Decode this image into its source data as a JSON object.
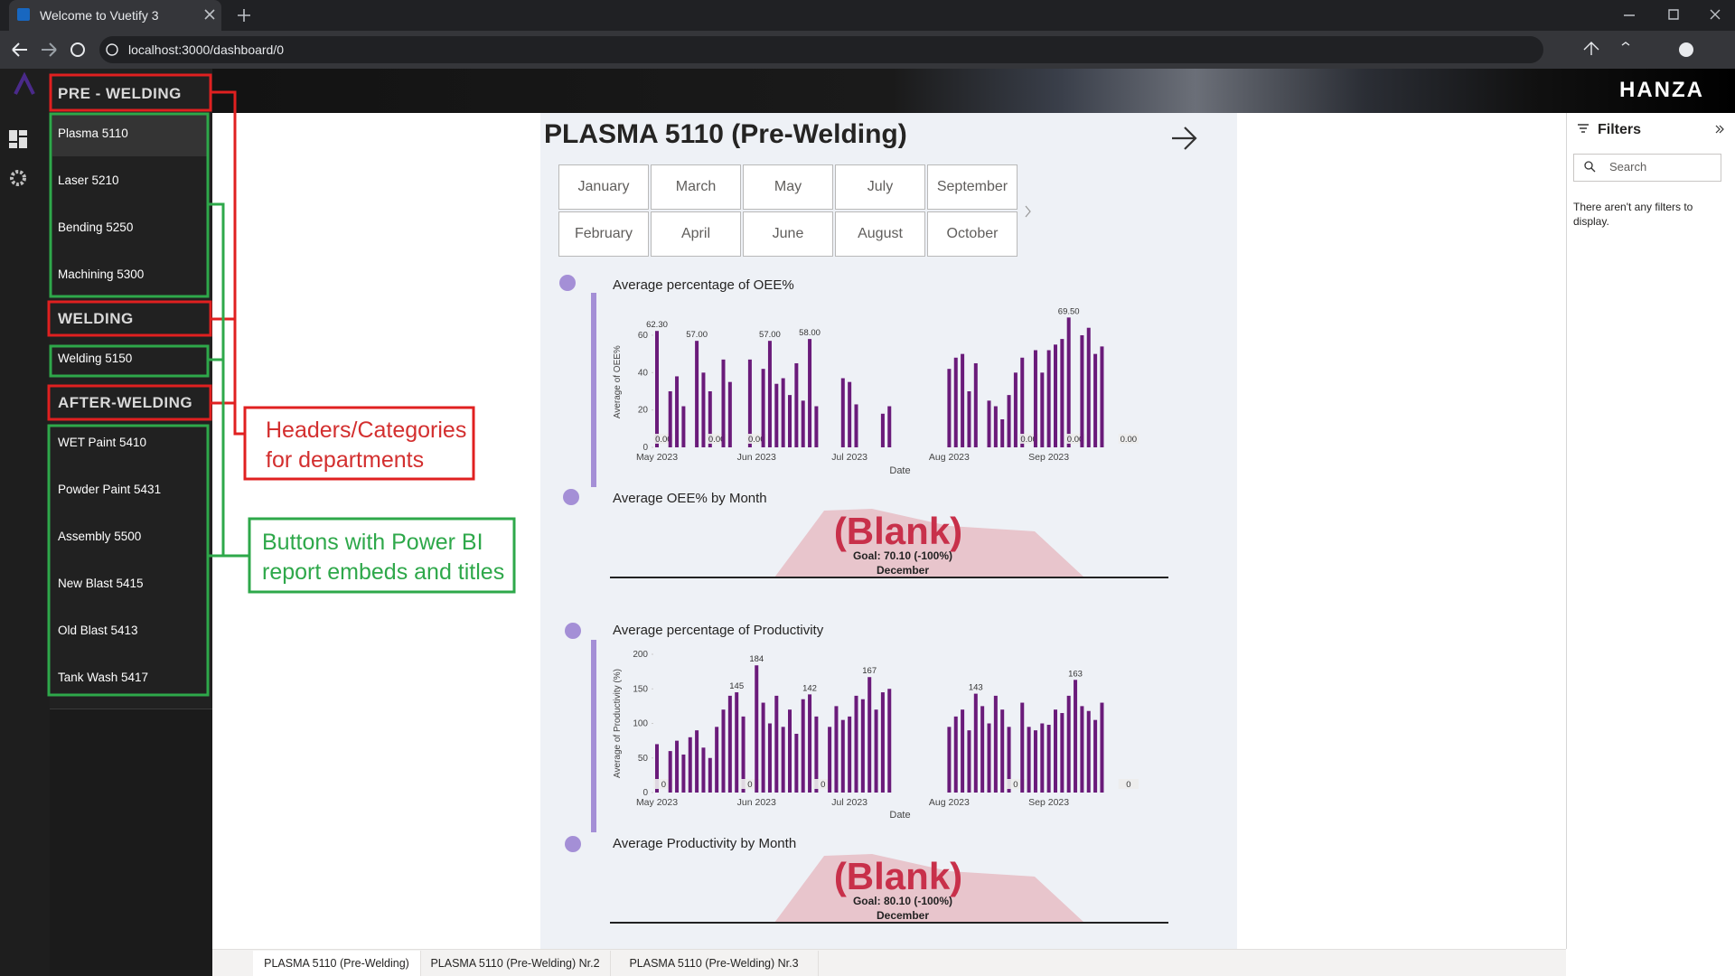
{
  "browser": {
    "tab_title": "Welcome to Vuetify 3",
    "url": "localhost:3000/dashboard/0"
  },
  "app_bar": {
    "brand": "HANZA"
  },
  "sidebar": {
    "groups": [
      {
        "header": "PRE - WELDING",
        "items": [
          "Plasma 5110",
          "Laser 5210",
          "Bending 5250",
          "Machining 5300"
        ]
      },
      {
        "header": "WELDING",
        "items": [
          "Welding 5150"
        ]
      },
      {
        "header": "AFTER-WELDING",
        "items": [
          "WET Paint 5410",
          "Powder Paint 5431",
          "Assembly 5500",
          "New Blast 5415",
          "Old Blast 5413",
          "Tank Wash 5417"
        ]
      }
    ]
  },
  "report": {
    "title": "PLASMA 5110 (Pre-Welding)",
    "months": [
      "January",
      "February",
      "March",
      "April",
      "May",
      "June",
      "July",
      "August",
      "September",
      "October"
    ],
    "cards": [
      {
        "title": "Average OEE% by Month",
        "value": "(Blank)",
        "goal": "Goal: 70.10 (-100%)",
        "period": "December"
      },
      {
        "title": "Average Productivity by Month",
        "value": "(Blank)",
        "goal": "Goal: 80.10 (-100%)",
        "period": "December"
      }
    ]
  },
  "chart_data": [
    {
      "type": "bar",
      "title": "Average percentage of OEE%",
      "x_label": "Date",
      "y_label": "Average of OEE%",
      "color": "#6a1b7a",
      "ylim": [
        0,
        70
      ],
      "yticks": [
        0,
        20,
        40,
        60
      ],
      "categories": [
        "May 2023",
        null,
        null,
        null,
        null,
        null,
        null,
        null,
        null,
        null,
        null,
        null,
        null,
        null,
        null,
        "Jun 2023",
        null,
        null,
        null,
        null,
        null,
        null,
        null,
        null,
        null,
        null,
        null,
        null,
        null,
        "Jul 2023",
        null,
        null,
        null,
        null,
        null,
        null,
        null,
        null,
        null,
        null,
        null,
        null,
        null,
        null,
        "Aug 2023",
        null,
        null,
        null,
        null,
        null,
        null,
        null,
        null,
        null,
        null,
        null,
        null,
        null,
        null,
        "Sep 2023",
        null,
        null,
        null,
        null,
        null,
        null,
        null,
        null,
        null,
        null,
        null,
        null
      ],
      "values": [
        62.3,
        0,
        30,
        38,
        22,
        null,
        57,
        40,
        30,
        0,
        47,
        35,
        null,
        null,
        47,
        0,
        42,
        57,
        34,
        37,
        28,
        45,
        25,
        58,
        22,
        null,
        null,
        null,
        37,
        35,
        23,
        null,
        null,
        null,
        18,
        22,
        null,
        null,
        null,
        null,
        null,
        null,
        null,
        null,
        42,
        48,
        50,
        30,
        45,
        null,
        25,
        22,
        15,
        28,
        40,
        48,
        0,
        52,
        40,
        52,
        55,
        58,
        69.5,
        0,
        60,
        64,
        50,
        54,
        null,
        null,
        null,
        0
      ],
      "value_labels": [
        "62.30",
        "0.00",
        null,
        null,
        null,
        null,
        "57.00",
        null,
        null,
        "0.00",
        null,
        null,
        null,
        null,
        null,
        "0.00",
        null,
        "57.00",
        null,
        null,
        null,
        null,
        null,
        "58.00",
        null,
        null,
        null,
        null,
        null,
        null,
        null,
        null,
        null,
        null,
        null,
        null,
        null,
        null,
        null,
        null,
        null,
        null,
        null,
        null,
        null,
        null,
        null,
        null,
        null,
        null,
        null,
        null,
        null,
        null,
        null,
        null,
        "0.00",
        null,
        null,
        null,
        null,
        null,
        "69.50",
        "0.00",
        null,
        null,
        null,
        null,
        null,
        null,
        null,
        "0.00"
      ]
    },
    {
      "type": "bar",
      "title": "Average percentage of Productivity",
      "x_label": "Date",
      "y_label": "Average of Productivity (%)",
      "color": "#6a1b7a",
      "ylim": [
        0,
        200
      ],
      "yticks": [
        0,
        50,
        100,
        150,
        200
      ],
      "categories": [
        "May 2023",
        null,
        null,
        null,
        null,
        null,
        null,
        null,
        null,
        null,
        null,
        null,
        null,
        null,
        null,
        "Jun 2023",
        null,
        null,
        null,
        null,
        null,
        null,
        null,
        null,
        null,
        null,
        null,
        null,
        null,
        "Jul 2023",
        null,
        null,
        null,
        null,
        null,
        null,
        null,
        null,
        null,
        null,
        null,
        null,
        null,
        null,
        "Aug 2023",
        null,
        null,
        null,
        null,
        null,
        null,
        null,
        null,
        null,
        null,
        null,
        null,
        null,
        null,
        "Sep 2023",
        null,
        null,
        null,
        null,
        null,
        null,
        null,
        null,
        null,
        null,
        null,
        null
      ],
      "values": [
        70,
        0,
        60,
        75,
        55,
        80,
        90,
        65,
        50,
        95,
        120,
        140,
        145,
        110,
        0,
        184,
        130,
        100,
        140,
        95,
        120,
        85,
        135,
        142,
        110,
        0,
        95,
        125,
        105,
        110,
        140,
        135,
        167,
        120,
        145,
        150,
        null,
        null,
        null,
        null,
        null,
        null,
        null,
        null,
        95,
        110,
        120,
        90,
        143,
        125,
        100,
        140,
        120,
        95,
        0,
        130,
        95,
        90,
        100,
        98,
        120,
        115,
        140,
        163,
        125,
        118,
        105,
        130,
        null,
        null,
        null,
        0
      ],
      "value_labels": [
        null,
        "0",
        null,
        null,
        null,
        null,
        null,
        null,
        null,
        null,
        null,
        null,
        "145",
        null,
        "0",
        "184",
        null,
        null,
        null,
        null,
        null,
        null,
        null,
        "142",
        null,
        "0",
        null,
        null,
        null,
        null,
        null,
        null,
        "167",
        null,
        null,
        null,
        null,
        null,
        null,
        null,
        null,
        null,
        null,
        null,
        null,
        null,
        null,
        null,
        "143",
        null,
        null,
        null,
        null,
        null,
        "0",
        null,
        null,
        null,
        null,
        null,
        null,
        null,
        null,
        "163",
        null,
        null,
        null,
        null,
        null,
        null,
        null,
        "0"
      ]
    }
  ],
  "filters": {
    "title": "Filters",
    "search_placeholder": "Search",
    "empty_message": "There aren't any filters to display."
  },
  "page_tabs": [
    "PLASMA 5110 (Pre-Welding)",
    "PLASMA 5110 (Pre-Welding) Nr.2",
    "PLASMA 5110 (Pre-Welding) Nr.3"
  ],
  "annotations": {
    "headers_callout": [
      "Headers/Categories",
      "for departments"
    ],
    "buttons_callout": [
      "Buttons with Power BI",
      "report embeds and titles"
    ]
  }
}
